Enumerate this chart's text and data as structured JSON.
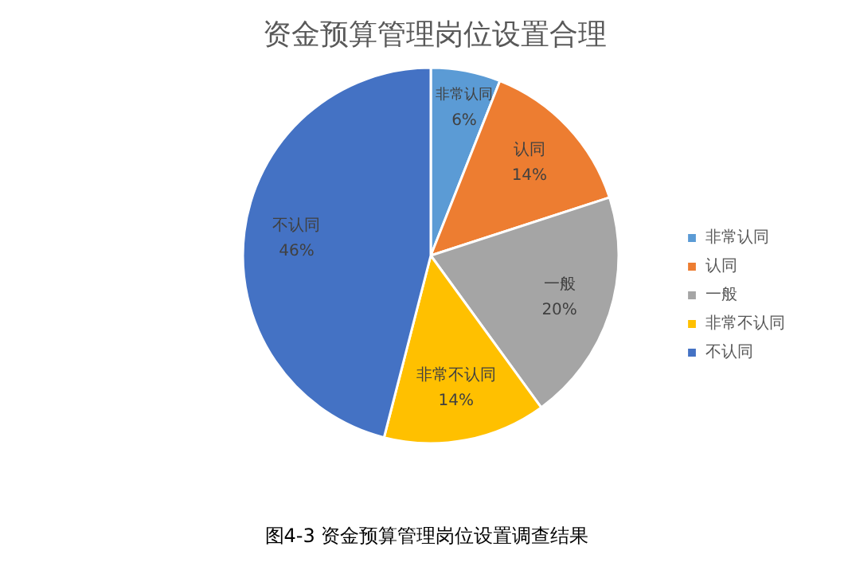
{
  "chart_data": {
    "type": "pie",
    "title": "资金预算管理岗位设置合理",
    "categories": [
      "非常认同",
      "认同",
      "一般",
      "非常不认同",
      "不认同"
    ],
    "values": [
      6,
      14,
      20,
      14,
      46
    ],
    "value_labels": [
      "6%",
      "14%",
      "20%",
      "14%",
      "46%"
    ],
    "colors": [
      "#5b9bd5",
      "#ed7d31",
      "#a5a5a5",
      "#ffc000",
      "#4472c4"
    ],
    "legend": "right",
    "annotations": [
      "图4-3 资金预算管理岗位设置调查结果"
    ]
  }
}
